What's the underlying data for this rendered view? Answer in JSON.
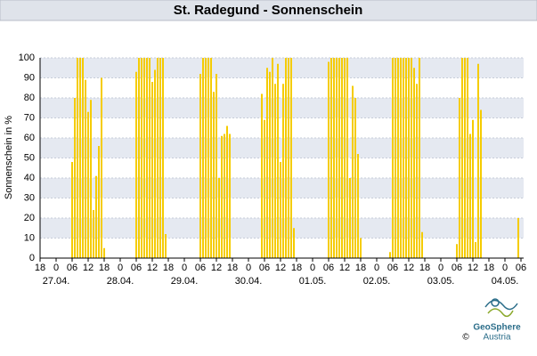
{
  "chart_data": {
    "type": "bar",
    "title": "St. Radegund - Sonnenschein",
    "y_label": "Sonnenschein in %",
    "color": "#f5cc00",
    "grid": true,
    "xlim": [
      0,
      180
    ],
    "ylim": [
      0,
      100
    ],
    "yticks": [
      0,
      10,
      20,
      30,
      40,
      50,
      60,
      70,
      80,
      90,
      100
    ],
    "xticks": [
      {
        "value": 0,
        "label": "18"
      },
      {
        "value": 6,
        "label": "0"
      },
      {
        "value": 12,
        "label": "06"
      },
      {
        "value": 18,
        "label": "12"
      },
      {
        "value": 24,
        "label": "18"
      },
      {
        "value": 30,
        "label": "0"
      },
      {
        "value": 36,
        "label": "06"
      },
      {
        "value": 42,
        "label": "12"
      },
      {
        "value": 48,
        "label": "18"
      },
      {
        "value": 54,
        "label": "0"
      },
      {
        "value": 60,
        "label": "06"
      },
      {
        "value": 66,
        "label": "12"
      },
      {
        "value": 72,
        "label": "18"
      },
      {
        "value": 78,
        "label": "0"
      },
      {
        "value": 84,
        "label": "06"
      },
      {
        "value": 90,
        "label": "12"
      },
      {
        "value": 96,
        "label": "18"
      },
      {
        "value": 102,
        "label": "0"
      },
      {
        "value": 108,
        "label": "06"
      },
      {
        "value": 114,
        "label": "12"
      },
      {
        "value": 120,
        "label": "18"
      },
      {
        "value": 126,
        "label": "0"
      },
      {
        "value": 132,
        "label": "06"
      },
      {
        "value": 138,
        "label": "12"
      },
      {
        "value": 144,
        "label": "18"
      },
      {
        "value": 150,
        "label": "0"
      },
      {
        "value": 156,
        "label": "06"
      },
      {
        "value": 162,
        "label": "12"
      },
      {
        "value": 168,
        "label": "18"
      },
      {
        "value": 174,
        "label": "0"
      },
      {
        "value": 180,
        "label": "06"
      }
    ],
    "date_ticks": [
      {
        "value": 6,
        "label": "27.04."
      },
      {
        "value": 30,
        "label": "28.04."
      },
      {
        "value": 54,
        "label": "29.04."
      },
      {
        "value": 78,
        "label": "30.04."
      },
      {
        "value": 102,
        "label": "01.05."
      },
      {
        "value": 126,
        "label": "02.05."
      },
      {
        "value": 150,
        "label": "03.05."
      },
      {
        "value": 174,
        "label": "04.05."
      }
    ],
    "x": [
      12,
      13,
      14,
      15,
      16,
      17,
      18,
      19,
      20,
      21,
      22,
      23,
      24,
      36,
      37,
      38,
      39,
      40,
      41,
      42,
      43,
      44,
      45,
      46,
      47,
      60,
      61,
      62,
      63,
      64,
      65,
      66,
      67,
      68,
      69,
      70,
      71,
      83,
      84,
      85,
      86,
      87,
      88,
      89,
      90,
      91,
      92,
      93,
      94,
      95,
      108,
      109,
      110,
      111,
      112,
      113,
      114,
      115,
      116,
      117,
      118,
      119,
      120,
      131,
      132,
      133,
      134,
      135,
      136,
      137,
      138,
      139,
      140,
      141,
      142,
      143,
      156,
      157,
      158,
      159,
      160,
      161,
      162,
      163,
      164,
      165,
      179
    ],
    "values": [
      48,
      80,
      100,
      100,
      100,
      89,
      73,
      79,
      24,
      41,
      56,
      90,
      5,
      93,
      100,
      100,
      100,
      100,
      100,
      88,
      94,
      100,
      100,
      100,
      12,
      92,
      100,
      100,
      100,
      100,
      83,
      92,
      40,
      61,
      62,
      66,
      62,
      82,
      69,
      95,
      93,
      100,
      87,
      97,
      48,
      87,
      100,
      100,
      100,
      15,
      98,
      100,
      100,
      100,
      100,
      100,
      100,
      100,
      40,
      86,
      80,
      52,
      10,
      3,
      100,
      100,
      100,
      100,
      100,
      100,
      100,
      100,
      95,
      87,
      100,
      13,
      7,
      80,
      100,
      100,
      100,
      62,
      69,
      8,
      97,
      74,
      20
    ]
  },
  "logo": {
    "name": "GeoSphere",
    "sub": "Austria",
    "copyright": "©"
  }
}
